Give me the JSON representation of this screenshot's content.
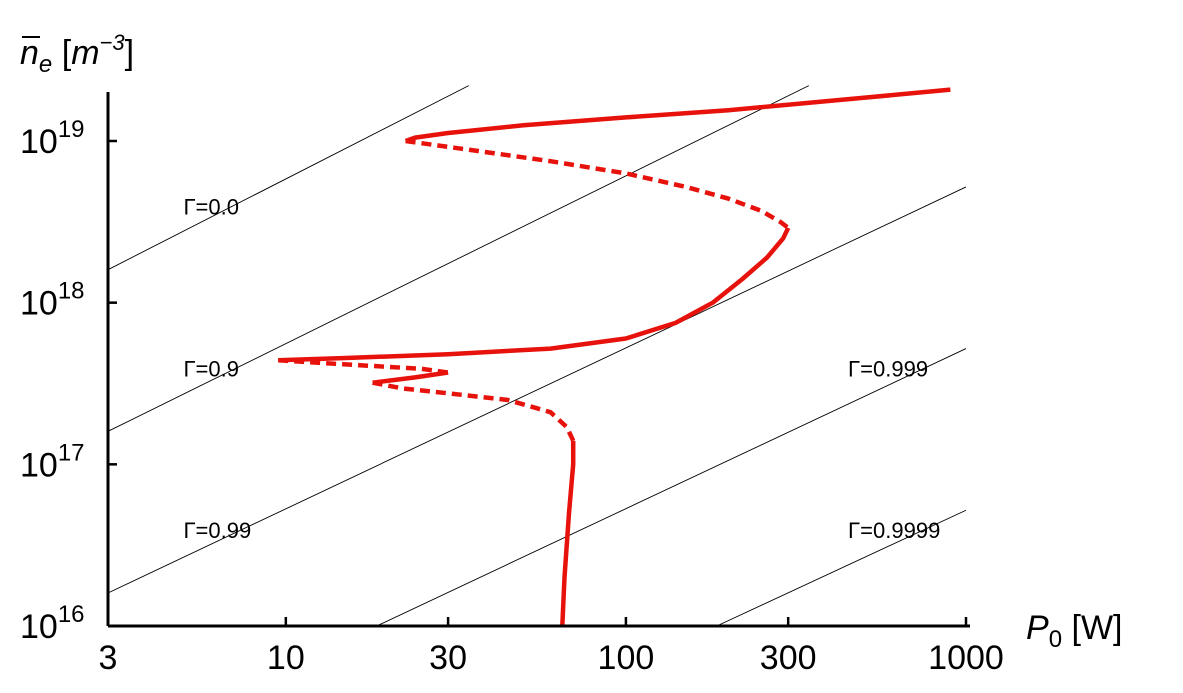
{
  "chart_data": {
    "type": "line",
    "xscale": "log",
    "yscale": "log",
    "xlim": [
      3,
      1000
    ],
    "ylim": [
      1e+16,
      2.2e+19
    ],
    "xticks": [
      {
        "value": 3,
        "label": "3"
      },
      {
        "value": 10,
        "label": "10"
      },
      {
        "value": 30,
        "label": "30"
      },
      {
        "value": 100,
        "label": "100"
      },
      {
        "value": 300,
        "label": "300"
      },
      {
        "value": 1000,
        "label": "1000"
      }
    ],
    "yticks": [
      {
        "value": 1e+16,
        "base": "10",
        "exp": "16"
      },
      {
        "value": 1e+17,
        "base": "10",
        "exp": "17"
      },
      {
        "value": 1e+18,
        "base": "10",
        "exp": "18"
      },
      {
        "value": 1e+19,
        "base": "10",
        "exp": "19"
      }
    ],
    "ylabel": {
      "symbol": "n",
      "sub": "e",
      "unit_open": " [",
      "unit": "m",
      "unit_exp": "−3",
      "unit_close": "]"
    },
    "xlabel": {
      "symbol": "P",
      "sub": "0",
      "unit": " [W]"
    },
    "grid": false,
    "color": "#e8120c",
    "contours": [
      {
        "label": "Γ=0.0",
        "label_x": 5,
        "label_y": 3.5e+18,
        "points": [
          [
            3,
            1.6e+18
          ],
          [
            34.5,
            2.2e+19
          ]
        ]
      },
      {
        "label": "Γ=0.9",
        "label_x": 5,
        "label_y": 3.5e+17,
        "points": [
          [
            3,
            1.6e+17
          ],
          [
            345,
            2.2e+19
          ]
        ]
      },
      {
        "label": "Γ=0.99",
        "label_x": 5,
        "label_y": 3.5e+16,
        "points": [
          [
            3,
            1.6e+16
          ],
          [
            1000,
            5.2e+18
          ]
        ]
      },
      {
        "label": "Γ=0.999",
        "label_x": 450,
        "label_y": 3.5e+17,
        "points": [
          [
            18.5,
            1e+16
          ],
          [
            1000,
            5.2e+17
          ]
        ]
      },
      {
        "label": "Γ=0.9999",
        "label_x": 450,
        "label_y": 3.5e+16,
        "points": [
          [
            185,
            1e+16
          ],
          [
            1000,
            5.2e+16
          ]
        ]
      }
    ],
    "series": [
      {
        "style": "solid",
        "points": [
          [
            900,
            2.08e+19
          ],
          [
            500,
            1.85e+19
          ],
          [
            200,
            1.55e+19
          ],
          [
            100,
            1.4e+19
          ],
          [
            50,
            1.25e+19
          ],
          [
            30,
            1.12e+19
          ],
          [
            24,
            1.05e+19
          ],
          [
            22.5,
            1e+19
          ]
        ]
      },
      {
        "style": "dashed",
        "points": [
          [
            22.5,
            1e+19
          ],
          [
            35,
            8.8e+18
          ],
          [
            60,
            7.5e+18
          ],
          [
            100,
            6.3e+18
          ],
          [
            150,
            5.2e+18
          ],
          [
            200,
            4.4e+18
          ],
          [
            250,
            3.7e+18
          ],
          [
            285,
            3.15e+18
          ],
          [
            300,
            2.9e+18
          ]
        ]
      },
      {
        "style": "solid",
        "points": [
          [
            300,
            2.9e+18
          ],
          [
            290,
            2.5e+18
          ],
          [
            260,
            1.9e+18
          ],
          [
            220,
            1.4e+18
          ],
          [
            180,
            1e+18
          ],
          [
            140,
            7.5e+17
          ],
          [
            100,
            6e+17
          ],
          [
            60,
            5.2e+17
          ],
          [
            30,
            4.8e+17
          ],
          [
            15,
            4.55e+17
          ],
          [
            9.5,
            4.4e+17
          ]
        ]
      },
      {
        "style": "dashed",
        "points": [
          [
            9.5,
            4.4e+17
          ],
          [
            15,
            4.15e+17
          ],
          [
            25,
            3.9e+17
          ],
          [
            30,
            3.7e+17
          ]
        ]
      },
      {
        "style": "solid",
        "points": [
          [
            30,
            3.7e+17
          ],
          [
            24,
            3.45e+17
          ],
          [
            18,
            3.2e+17
          ]
        ]
      },
      {
        "style": "dashed",
        "points": [
          [
            18,
            3.2e+17
          ],
          [
            22,
            2.95e+17
          ],
          [
            30,
            2.75e+17
          ],
          [
            45,
            2.5e+17
          ],
          [
            60,
            2.1e+17
          ],
          [
            67,
            1.7e+17
          ],
          [
            70,
            1.4e+17
          ]
        ]
      },
      {
        "style": "solid",
        "points": [
          [
            70,
            1.4e+17
          ],
          [
            70,
            1e+17
          ],
          [
            68,
            5e+16
          ],
          [
            66,
            2e+16
          ],
          [
            65,
            1e+16
          ]
        ]
      }
    ]
  }
}
